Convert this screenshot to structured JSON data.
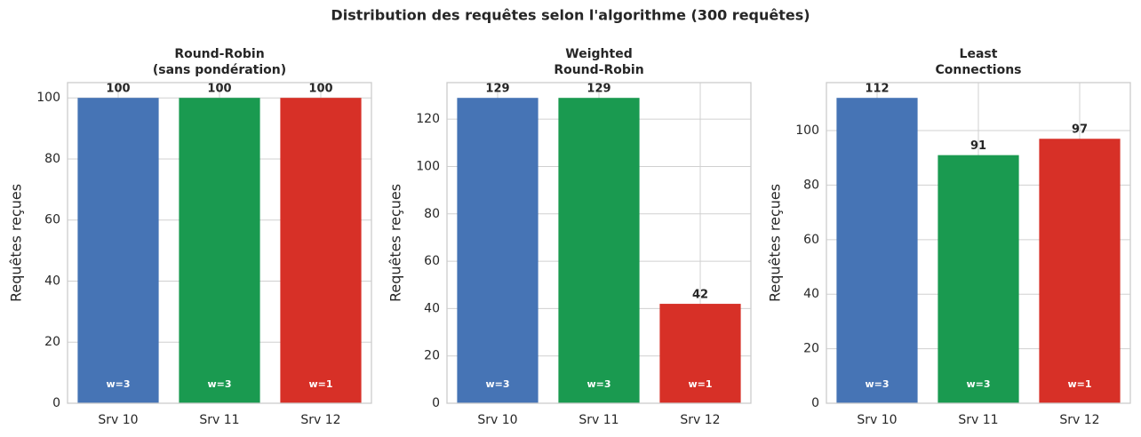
{
  "title": "Distribution des requêtes selon l'algorithme (300 requêtes)",
  "chart_data": [
    {
      "type": "bar",
      "title": [
        "Round-Robin",
        "(sans pondération)"
      ],
      "y_label": "Requêtes reçues",
      "categories": [
        "Srv 10",
        "Srv 11",
        "Srv 12"
      ],
      "values": [
        100,
        100,
        100
      ],
      "colors": [
        "#4674b5",
        "#1a9a50",
        "#d73027"
      ],
      "annotations": [
        "w=3",
        "w=3",
        "w=1"
      ],
      "ylim": [
        0,
        105
      ],
      "yticks": [
        0,
        20,
        40,
        60,
        80,
        100
      ],
      "grid": true
    },
    {
      "type": "bar",
      "title": [
        "Weighted",
        "Round-Robin"
      ],
      "y_label": "Requêtes reçues",
      "categories": [
        "Srv 10",
        "Srv 11",
        "Srv 12"
      ],
      "values": [
        129,
        129,
        42
      ],
      "colors": [
        "#4674b5",
        "#1a9a50",
        "#d73027"
      ],
      "annotations": [
        "w=3",
        "w=3",
        "w=1"
      ],
      "ylim": [
        0,
        135.45
      ],
      "yticks": [
        0,
        20,
        40,
        60,
        80,
        100,
        120
      ],
      "grid": true
    },
    {
      "type": "bar",
      "title": [
        "Least",
        "Connections"
      ],
      "y_label": "Requêtes reçues",
      "categories": [
        "Srv 10",
        "Srv 11",
        "Srv 12"
      ],
      "values": [
        112,
        91,
        97
      ],
      "colors": [
        "#4674b5",
        "#1a9a50",
        "#d73027"
      ],
      "annotations": [
        "w=3",
        "w=3",
        "w=1"
      ],
      "ylim": [
        0,
        117.6
      ],
      "yticks": [
        0,
        20,
        40,
        60,
        80,
        100
      ],
      "grid": true
    }
  ]
}
